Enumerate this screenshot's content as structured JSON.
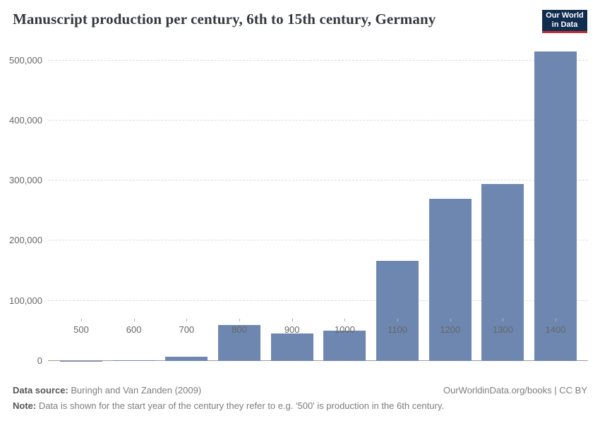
{
  "header": {
    "title": "Manuscript production per century, 6th to 15th century, Germany",
    "logo": {
      "line1": "Our World",
      "line2": "in Data",
      "bg_color": "#102d4f",
      "accent_color": "#c0302e"
    }
  },
  "chart_data": {
    "type": "bar",
    "title": "Manuscript production per century, 6th to 15th century, Germany",
    "categories": [
      "500",
      "600",
      "700",
      "800",
      "900",
      "1000",
      "1100",
      "1200",
      "1300",
      "1400"
    ],
    "values": [
      220,
      1030,
      7440,
      59600,
      46000,
      49900,
      166700,
      270100,
      293900,
      514500
    ],
    "xlabel": "",
    "ylabel": "",
    "ylim": [
      0,
      530000
    ],
    "yticks": [
      0,
      100000,
      200000,
      300000,
      400000,
      500000
    ],
    "ytick_labels": [
      "0",
      "100,000",
      "200,000",
      "300,000",
      "400,000",
      "500,000"
    ],
    "grid": "horizontal-dashed",
    "legend": "none",
    "bar_color": "#6e87b1"
  },
  "footer": {
    "source_label": "Data source:",
    "source_value": " Buringh and Van Zanden (2009)",
    "credit": "OurWorldinData.org/books | CC BY",
    "note_label": "Note:",
    "note_value": " Data is shown for the start year of the century they refer to e.g. '500' is production in the 6th century."
  }
}
